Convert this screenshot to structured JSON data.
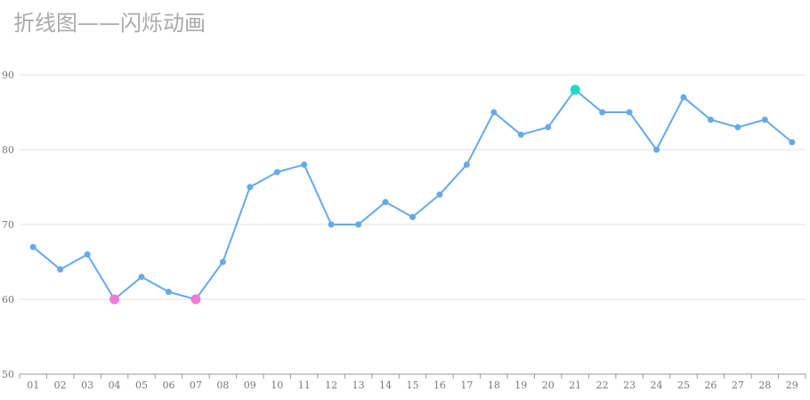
{
  "chart_data": {
    "type": "line",
    "title": "折线图——闪烁动画",
    "categories": [
      "01",
      "02",
      "03",
      "04",
      "05",
      "06",
      "07",
      "08",
      "09",
      "10",
      "11",
      "12",
      "13",
      "14",
      "15",
      "16",
      "17",
      "18",
      "19",
      "20",
      "21",
      "22",
      "23",
      "24",
      "25",
      "26",
      "27",
      "28",
      "29"
    ],
    "series": [
      {
        "values": [
          67,
          64,
          66,
          60,
          63,
          61,
          60,
          65,
          75,
          77,
          78,
          70,
          70,
          73,
          71,
          74,
          78,
          85,
          82,
          83,
          88,
          85,
          85,
          80,
          87,
          84,
          83,
          84,
          81
        ],
        "color": "#64aaeb"
      }
    ],
    "highlights": [
      {
        "category": "04",
        "value": 60,
        "color": "#f07ad8"
      },
      {
        "category": "07",
        "value": 60,
        "color": "#f07ad8"
      },
      {
        "category": "21",
        "value": 88,
        "color": "#1ed9c8"
      }
    ],
    "ylim": [
      50,
      90
    ],
    "yticks": [
      50,
      60,
      70,
      80,
      90
    ],
    "grid": true,
    "xlabel": "",
    "ylabel": ""
  }
}
